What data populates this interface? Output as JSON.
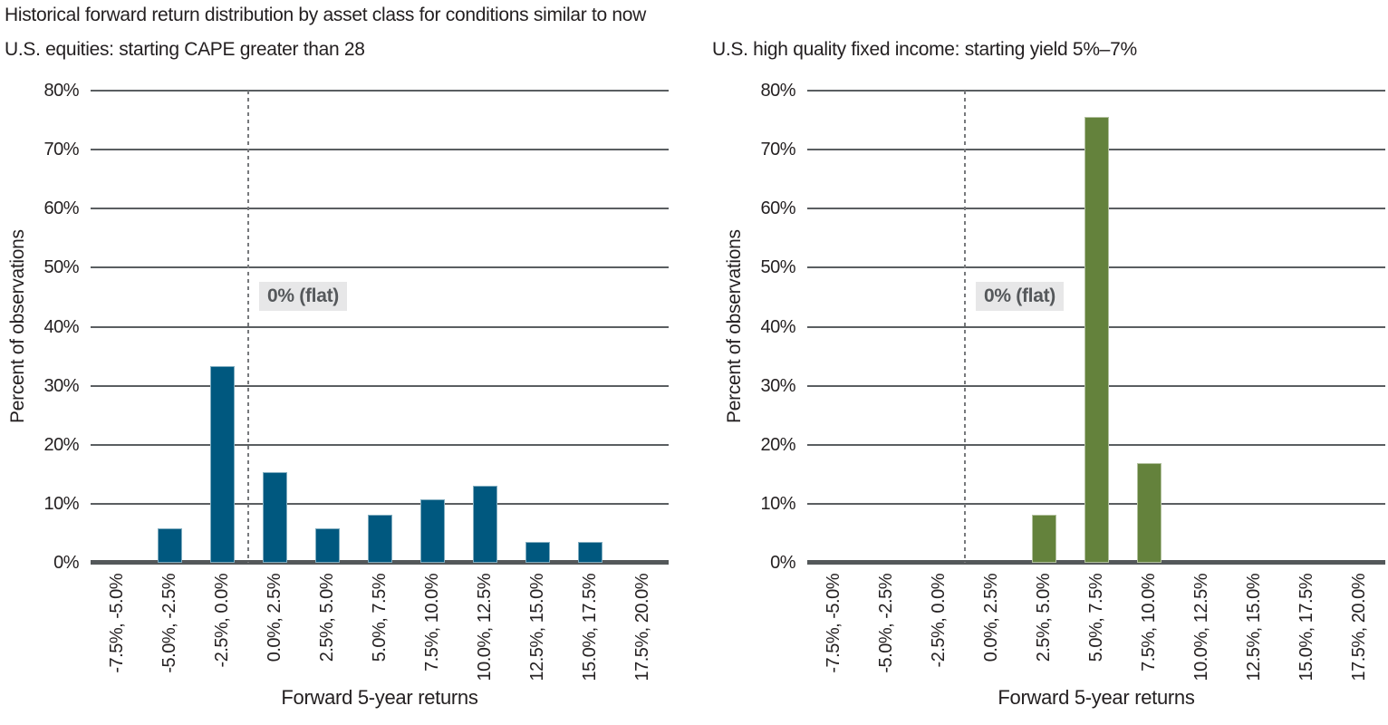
{
  "figure": {
    "title": "Historical forward return distribution by asset class for conditions similar to now",
    "flat_label": "0% (flat)",
    "y_axis_label": "Percent of observations",
    "x_axis_label": "Forward 5-year returns",
    "y_ticks": [
      "80%",
      "70%",
      "60%",
      "50%",
      "40%",
      "30%",
      "20%",
      "10%",
      "0%"
    ],
    "colors": {
      "equities_bar": "#00587f",
      "fixed_income_bar": "#64823c",
      "gridline": "#5a5e61",
      "axis_line": "#54585a",
      "dashed_line": "#77797c",
      "flat_label_bg": "#e7e7e8",
      "flat_label_text": "#55585b",
      "text": "#231f20"
    }
  },
  "chart_data": [
    {
      "type": "bar",
      "title": "U.S. equities: starting CAPE greater than 28",
      "categories": [
        "-7.5%, -5.0%",
        "-5.0%, -2.5%",
        "-2.5%, 0.0%",
        "0.0%, 2.5%",
        "2.5%, 5.0%",
        "5.0%, 7.5%",
        "7.5%, 10.0%",
        "10.0%, 12.5%",
        "12.5%, 15.0%",
        "15.0%, 17.5%",
        "17.5%, 20.0%"
      ],
      "values": [
        0,
        5.8,
        33.3,
        15.4,
        5.8,
        8.1,
        10.7,
        13.1,
        3.5,
        3.5,
        0
      ],
      "xlabel": "Forward 5-year returns",
      "ylabel": "Percent of observations",
      "ylim": [
        0,
        80
      ],
      "ytick_step": 10,
      "grid": true,
      "bar_color": "#00587f",
      "annotation": {
        "text": "0% (flat)",
        "dashed_line_after_category_index": 2
      }
    },
    {
      "type": "bar",
      "title": "U.S. high quality fixed income: starting yield 5%–7%",
      "categories": [
        "-7.5%, -5.0%",
        "-5.0%, -2.5%",
        "-2.5%, 0.0%",
        "0.0%, 2.5%",
        "2.5%, 5.0%",
        "5.0%, 7.5%",
        "7.5%, 10.0%",
        "10.0%, 12.5%",
        "12.5%, 15.0%",
        "15.0%, 17.5%",
        "17.5%, 20.0%"
      ],
      "values": [
        0,
        0,
        0,
        0,
        8.1,
        75.5,
        16.9,
        0,
        0,
        0,
        0
      ],
      "xlabel": "Forward 5-year returns",
      "ylabel": "Percent of observations",
      "ylim": [
        0,
        80
      ],
      "ytick_step": 10,
      "grid": true,
      "bar_color": "#64823c",
      "annotation": {
        "text": "0% (flat)",
        "dashed_line_after_category_index": 2
      }
    }
  ]
}
